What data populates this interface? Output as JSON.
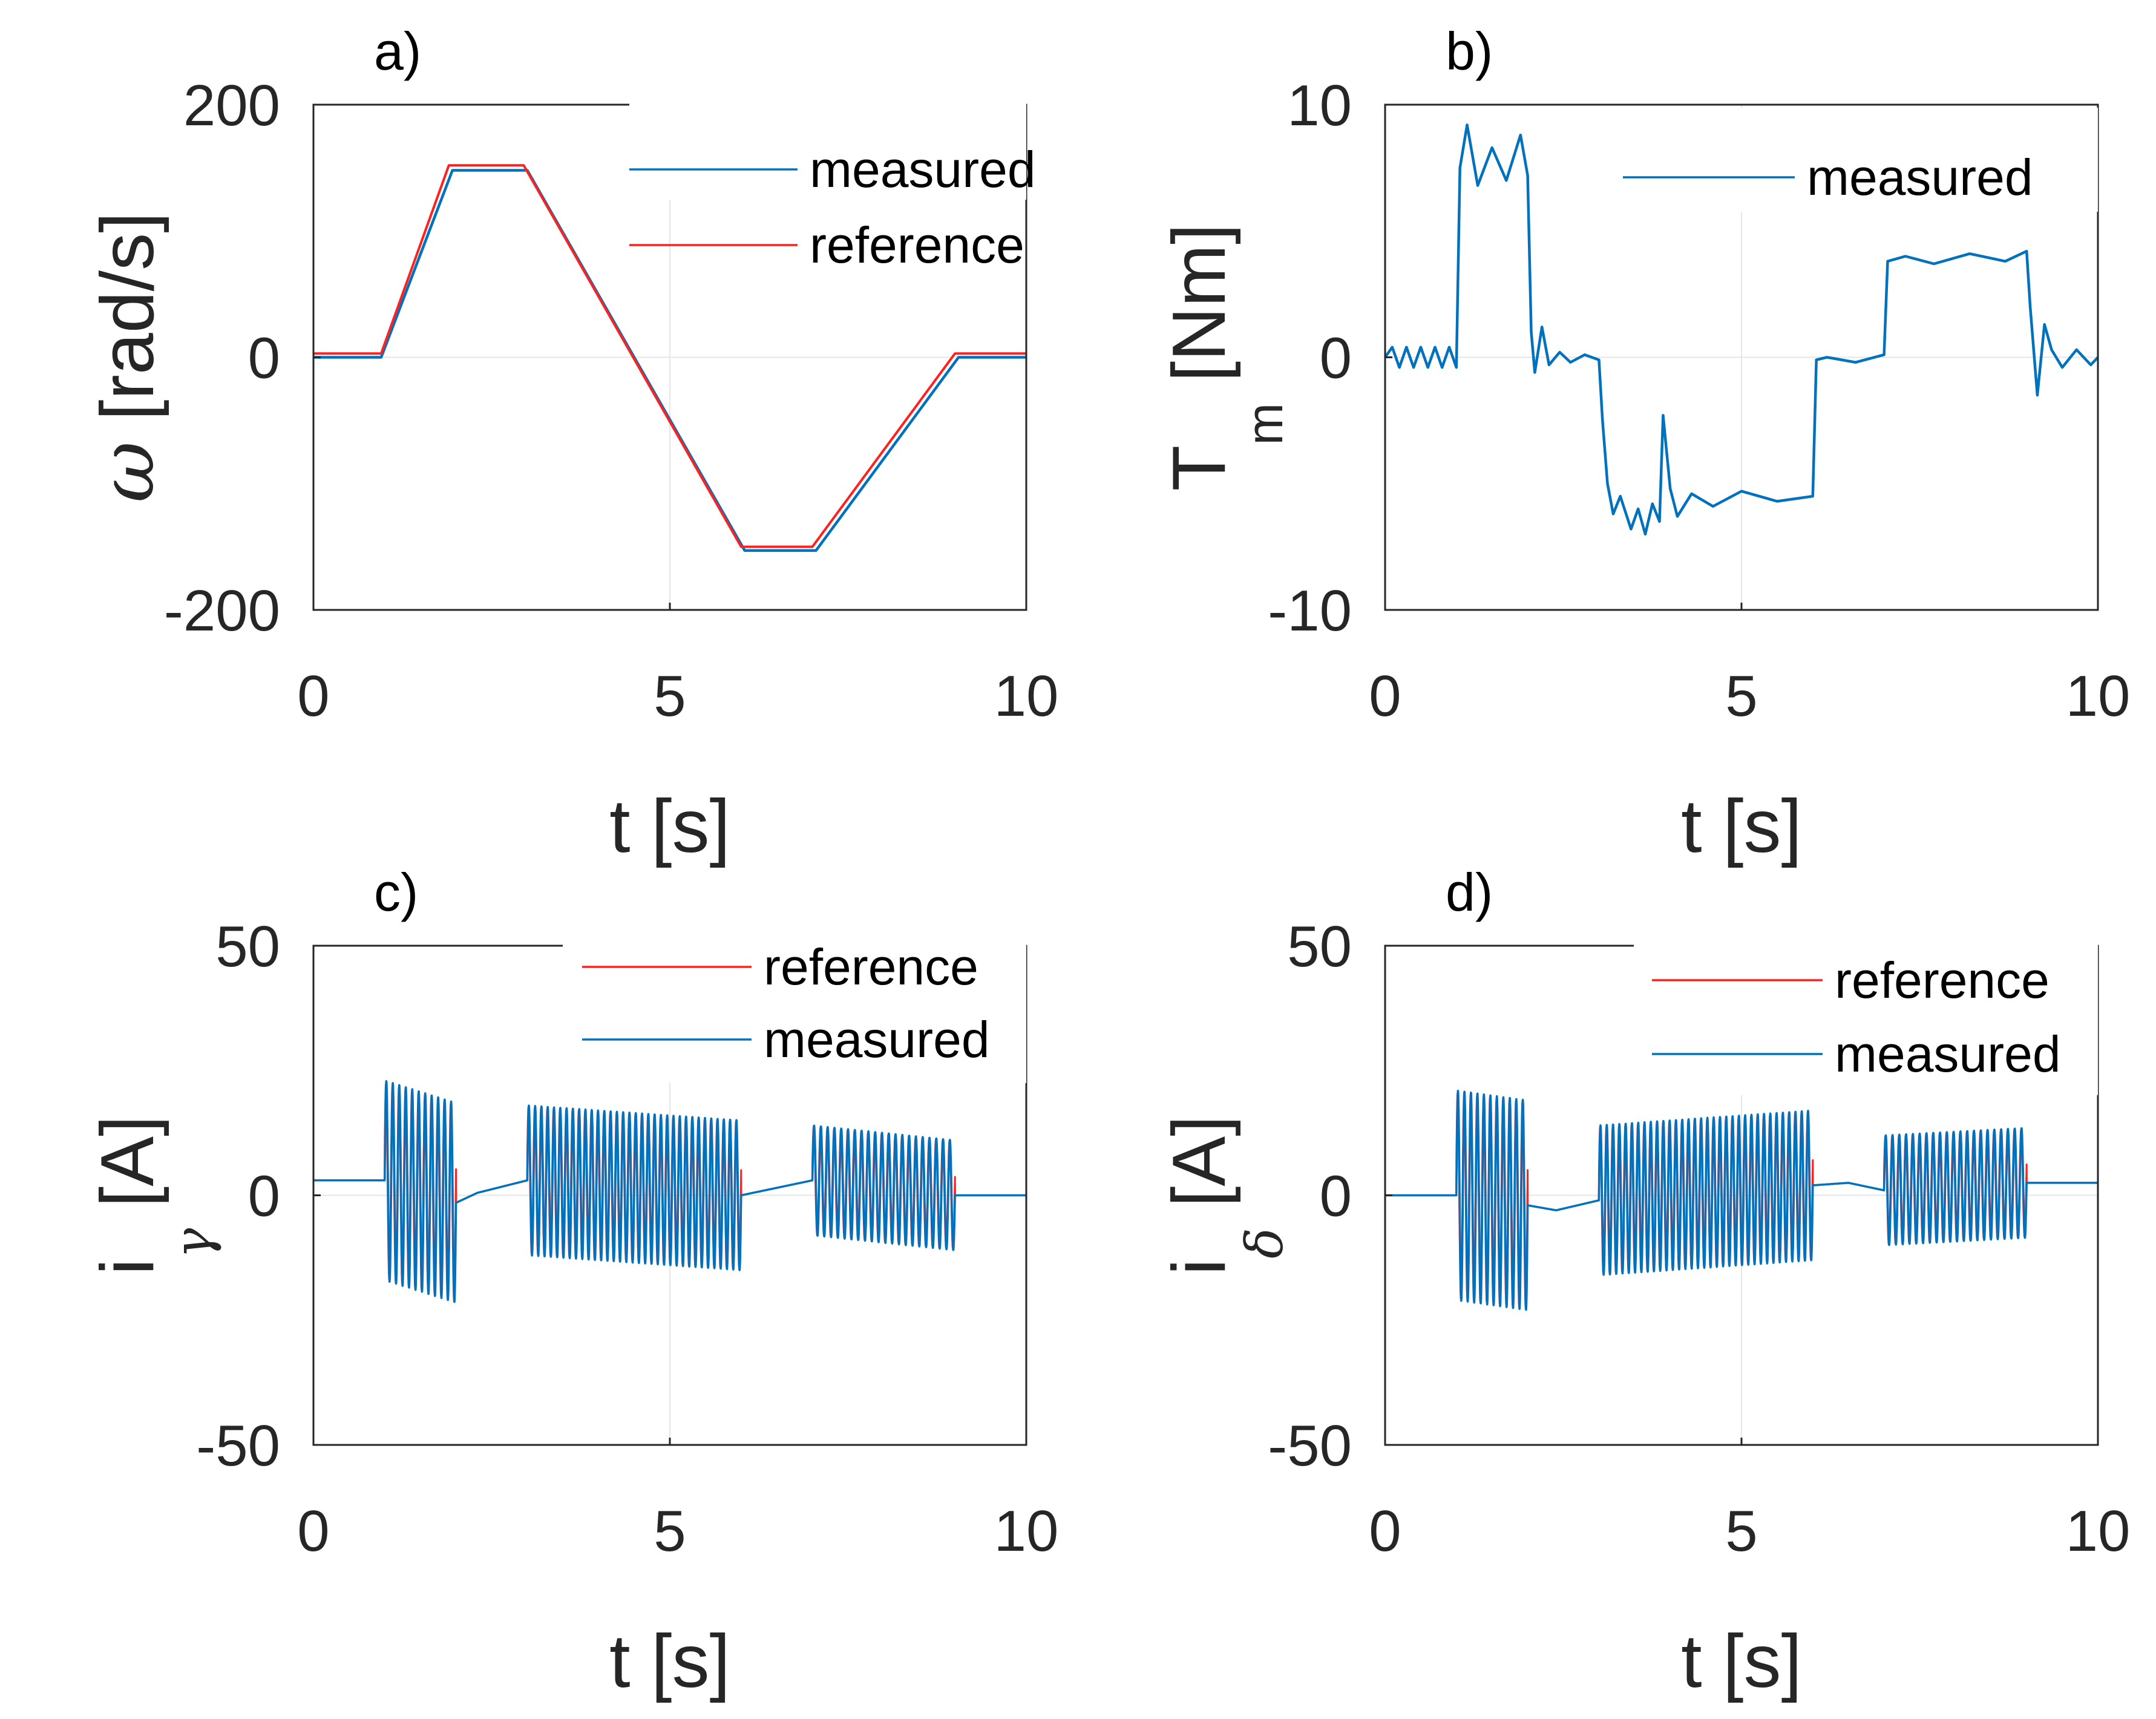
{
  "chart_data": [
    {
      "id": "a",
      "type": "line",
      "panel_label": "a)",
      "xlabel": "t [s]",
      "ylabel_symbol": "ω",
      "ylabel_unit": " [rad/s]",
      "xlim": [
        0,
        10
      ],
      "ylim": [
        -200,
        200
      ],
      "xticks": [
        "0",
        "5",
        "10"
      ],
      "yticks": [
        "-200",
        "0",
        "200"
      ],
      "grid": true,
      "legend_position": "top-right",
      "series": [
        {
          "name": "measured",
          "color": "#0072BD",
          "x": [
            0,
            0.95,
            1.95,
            3.0,
            6.05,
            7.05,
            9.05,
            10
          ],
          "y": [
            0,
            0,
            148,
            148,
            -153,
            -153,
            0,
            0
          ]
        },
        {
          "name": "reference",
          "color": "#FF2020",
          "x": [
            0,
            0.95,
            1.9,
            2.95,
            6.0,
            7.0,
            9.0,
            10
          ],
          "y": [
            3,
            3,
            152,
            152,
            -150,
            -150,
            3,
            3
          ]
        }
      ]
    },
    {
      "id": "b",
      "type": "line",
      "panel_label": "b)",
      "xlabel": "t [s]",
      "ylabel_main": "T",
      "ylabel_sub": "m",
      "ylabel_unit": " [Nm]",
      "xlim": [
        0,
        10
      ],
      "ylim": [
        -10,
        10
      ],
      "xticks": [
        "0",
        "5",
        "10"
      ],
      "yticks": [
        "-10",
        "0",
        "10"
      ],
      "grid": true,
      "legend_position": "top-right",
      "series": [
        {
          "name": "measured",
          "color": "#0072BD",
          "x": [
            0,
            0.1,
            0.2,
            0.3,
            0.4,
            0.5,
            0.6,
            0.7,
            0.8,
            0.9,
            1.0,
            1.05,
            1.15,
            1.3,
            1.5,
            1.7,
            1.9,
            2.0,
            2.05,
            2.1,
            2.2,
            2.3,
            2.45,
            2.6,
            2.8,
            3.0,
            3.05,
            3.12,
            3.2,
            3.3,
            3.45,
            3.55,
            3.65,
            3.75,
            3.85,
            3.9,
            4.0,
            4.1,
            4.3,
            4.6,
            5.0,
            5.5,
            6.0,
            6.05,
            6.2,
            6.6,
            7.0,
            7.05,
            7.3,
            7.7,
            8.2,
            8.7,
            9.0,
            9.05,
            9.15,
            9.25,
            9.35,
            9.5,
            9.7,
            9.9,
            10.0
          ],
          "y": [
            0,
            0.4,
            -0.4,
            0.4,
            -0.4,
            0.4,
            -0.4,
            0.4,
            -0.4,
            0.4,
            -0.4,
            7.5,
            9.2,
            6.8,
            8.3,
            7.0,
            8.8,
            7.2,
            1.0,
            -0.6,
            1.2,
            -0.3,
            0.2,
            -0.2,
            0.1,
            -0.1,
            -2.5,
            -5.0,
            -6.2,
            -5.5,
            -6.8,
            -6.0,
            -7.0,
            -5.8,
            -6.5,
            -2.3,
            -5.2,
            -6.3,
            -5.4,
            -5.9,
            -5.3,
            -5.7,
            -5.5,
            -0.1,
            0.0,
            -0.2,
            0.1,
            3.8,
            4.0,
            3.7,
            4.1,
            3.8,
            4.2,
            2.0,
            -1.5,
            1.3,
            0.3,
            -0.4,
            0.3,
            -0.3,
            0.0
          ]
        }
      ]
    },
    {
      "id": "c",
      "type": "line",
      "panel_label": "c)",
      "xlabel": "t [s]",
      "ylabel_main": "i",
      "ylabel_sub_symbol": "γ",
      "ylabel_unit": " [A]",
      "xlim": [
        0,
        10
      ],
      "ylim": [
        -50,
        50
      ],
      "xticks": [
        "0",
        "5",
        "10"
      ],
      "yticks": [
        "-50",
        "0",
        "50"
      ],
      "grid": true,
      "legend_position": "top-right",
      "baseline": [
        [
          0,
          3.0
        ],
        [
          1.0,
          3.0
        ],
        [
          2.0,
          -1.5
        ],
        [
          2.3,
          0.5
        ],
        [
          3.0,
          3.0
        ],
        [
          6.0,
          0.0
        ],
        [
          6.5,
          1.5
        ],
        [
          7.0,
          3.0
        ],
        [
          9.0,
          0.0
        ],
        [
          10.0,
          0.0
        ]
      ],
      "bursts": [
        {
          "t_start": 1.0,
          "t_end": 2.0,
          "amplitude": 20,
          "cycles": 11
        },
        {
          "t_start": 3.0,
          "t_end": 6.0,
          "amplitude": 15,
          "cycles": 34
        },
        {
          "t_start": 7.0,
          "t_end": 9.0,
          "amplitude": 11,
          "cycles": 21
        }
      ],
      "series": [
        {
          "name": "reference",
          "color": "#FF2020"
        },
        {
          "name": "measured",
          "color": "#0072BD"
        }
      ]
    },
    {
      "id": "d",
      "type": "line",
      "panel_label": "d)",
      "xlabel": "t [s]",
      "ylabel_main": "i",
      "ylabel_sub_symbol": "δ",
      "ylabel_unit": " [A]",
      "xlim": [
        0,
        10
      ],
      "ylim": [
        -50,
        50
      ],
      "xticks": [
        "0",
        "5",
        "10"
      ],
      "yticks": [
        "-50",
        "0",
        "50"
      ],
      "grid": true,
      "legend_position": "top-right",
      "baseline": [
        [
          0,
          0.0
        ],
        [
          1.0,
          0.0
        ],
        [
          2.0,
          -2.0
        ],
        [
          2.4,
          -3.0
        ],
        [
          3.0,
          -1.0
        ],
        [
          6.0,
          2.0
        ],
        [
          6.5,
          2.5
        ],
        [
          7.0,
          1.0
        ],
        [
          9.0,
          2.5
        ],
        [
          10.0,
          2.5
        ]
      ],
      "bursts": [
        {
          "t_start": 1.0,
          "t_end": 2.0,
          "amplitude": 21,
          "cycles": 11
        },
        {
          "t_start": 3.0,
          "t_end": 6.0,
          "amplitude": 15,
          "cycles": 34
        },
        {
          "t_start": 7.0,
          "t_end": 9.0,
          "amplitude": 11,
          "cycles": 21
        }
      ],
      "series": [
        {
          "name": "reference",
          "color": "#FF2020"
        },
        {
          "name": "measured",
          "color": "#0072BD"
        }
      ]
    }
  ]
}
